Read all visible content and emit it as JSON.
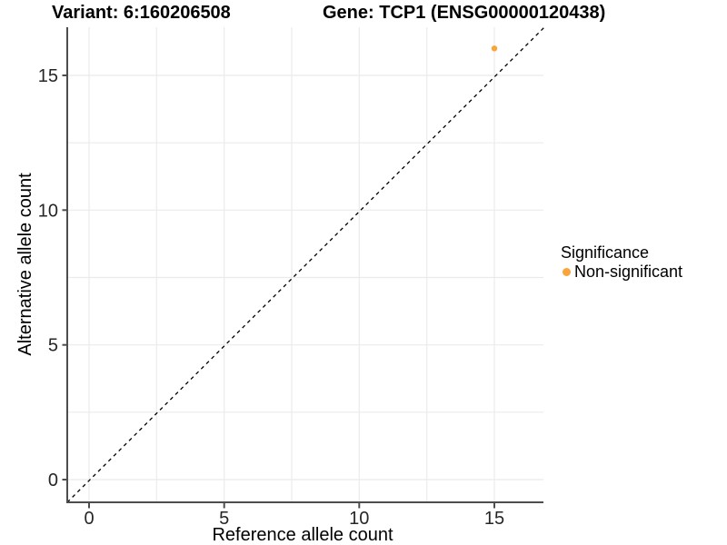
{
  "header": {
    "variant_title": "Variant: 6:160206508",
    "gene_title": "Gene: TCP1 (ENSG00000120438)"
  },
  "chart_data": {
    "type": "scatter",
    "title_left": "Variant: 6:160206508",
    "title_right": "Gene: TCP1 (ENSG00000120438)",
    "xlabel": "Reference allele count",
    "ylabel": "Alternative allele count",
    "x_ticks": [
      0,
      5,
      10,
      15
    ],
    "y_ticks": [
      0,
      5,
      10,
      15
    ],
    "xlim": [
      -0.8,
      16.8
    ],
    "ylim": [
      -0.8,
      16.8
    ],
    "grid": true,
    "grid_interval": 2.5,
    "reference_line": {
      "equation": "y = x",
      "style": "dashed",
      "color": "#000000"
    },
    "series": [
      {
        "name": "Non-significant",
        "color": "#FAA43A",
        "points": [
          {
            "x": 15,
            "y": 16
          }
        ]
      }
    ],
    "legend": {
      "title": "Significance",
      "position": "right",
      "entries": [
        {
          "label": "Non-significant",
          "color": "#FAA43A"
        }
      ]
    }
  }
}
